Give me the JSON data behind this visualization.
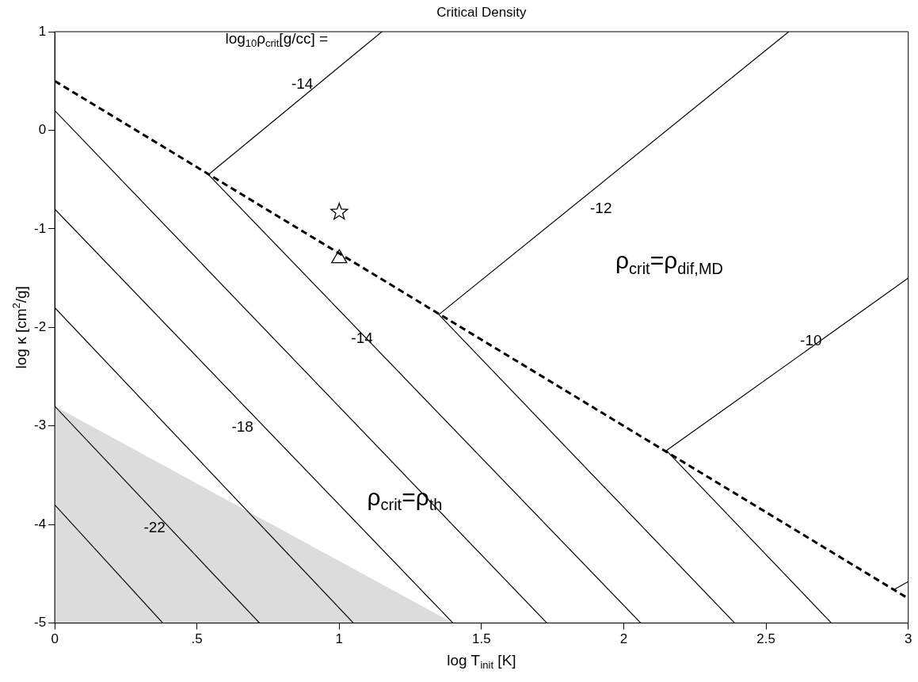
{
  "chart_data": {
    "type": "line",
    "title": "Critical Density",
    "xlabel": "log T$_{init}$ [K]",
    "ylabel": "log κ [cm$^{2}$/g]",
    "xlim": [
      0,
      3
    ],
    "ylim": [
      -5,
      1
    ],
    "xticks": [
      0,
      {
        "value": 0.5,
        "label": ".5"
      },
      1,
      1.5,
      2,
      2.5,
      3
    ],
    "yticks": [
      -5,
      -4,
      -3,
      -2,
      -1,
      0,
      1
    ],
    "grid": false,
    "legend": false,
    "series": [
      {
        "type": "area",
        "color": "#dcdcdc",
        "x": [
          0,
          1.4
        ],
        "values": [
          -2.8,
          -5
        ]
      },
      {
        "type": "line",
        "line_style": "dashed",
        "color": "#000000",
        "x": [
          0,
          3
        ],
        "values": [
          0.5,
          -4.75
        ]
      },
      {
        "type": "line",
        "color": "#000000",
        "x": [
          0,
          1.73
        ],
        "values": [
          0.2,
          -5
        ]
      },
      {
        "type": "line",
        "color": "#000000",
        "x": [
          0,
          1.4
        ],
        "values": [
          -0.8,
          -5
        ]
      },
      {
        "type": "line",
        "color": "#000000",
        "x": [
          0,
          1.05
        ],
        "values": [
          -1.8,
          -5
        ]
      },
      {
        "type": "line",
        "color": "#000000",
        "x": [
          0,
          0.72
        ],
        "values": [
          -2.8,
          -5
        ]
      },
      {
        "type": "line",
        "color": "#000000",
        "x": [
          0,
          0.38
        ],
        "values": [
          -3.8,
          -5
        ]
      },
      {
        "type": "line",
        "color": "#000000",
        "x": [
          0.54,
          2.06
        ],
        "values": [
          -0.45,
          -5
        ]
      },
      {
        "type": "line",
        "color": "#000000",
        "x": [
          1.35,
          2.39
        ],
        "values": [
          -1.87,
          -5
        ]
      },
      {
        "type": "line",
        "color": "#000000",
        "x": [
          2.15,
          2.73
        ],
        "values": [
          -3.25,
          -5
        ]
      },
      {
        "type": "line",
        "color": "#000000",
        "x": [
          0.54,
          1.15
        ],
        "values": [
          -0.45,
          1
        ]
      },
      {
        "type": "line",
        "color": "#000000",
        "x": [
          1.35,
          2.58
        ],
        "values": [
          -1.87,
          1
        ]
      },
      {
        "type": "line",
        "color": "#000000",
        "x": [
          2.15,
          3
        ],
        "values": [
          -3.25,
          -1.5
        ]
      },
      {
        "type": "line",
        "color": "#000000",
        "x": [
          2.95,
          3
        ],
        "values": [
          -4.66,
          -4.58
        ]
      },
      {
        "type": "scatter",
        "marker": "star",
        "color": "#000000",
        "x": [
          1.0
        ],
        "values": [
          -0.83
        ]
      },
      {
        "type": "scatter",
        "marker": "triangle",
        "color": "#000000",
        "x": [
          1.0
        ],
        "values": [
          -1.3
        ]
      }
    ],
    "annotations": [
      "log$_{10}$ρ$_{crit}$[g/cc] =",
      "-14",
      "-12",
      "-10",
      "-14",
      "-18",
      "-22",
      "ρ$_{crit}$=ρ$_{dif,MD}$",
      "ρ$_{crit}$=ρ$_{th}$"
    ]
  }
}
